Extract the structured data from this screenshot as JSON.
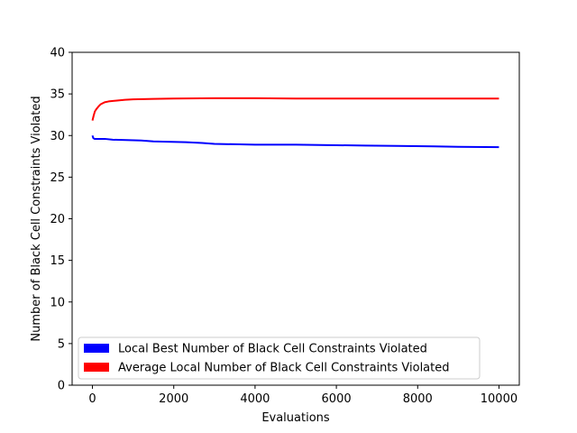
{
  "chart_data": {
    "type": "line",
    "title": "",
    "xlabel": "Evaluations",
    "ylabel": "Number of Black Cell Constraints Violated",
    "xlim": [
      -500,
      10500
    ],
    "ylim": [
      0,
      40
    ],
    "x_ticks": [
      0,
      2000,
      4000,
      6000,
      8000,
      10000
    ],
    "y_ticks": [
      0,
      5,
      10,
      15,
      20,
      25,
      30,
      35,
      40
    ],
    "grid": false,
    "legend_position": "lower-left",
    "series": [
      {
        "name": "Local Best Number of Black Cell Constraints Violated",
        "color": "#0000ff",
        "x": [
          0,
          20,
          50,
          300,
          500,
          1200,
          1500,
          2300,
          2700,
          3000,
          4000,
          5000,
          5800,
          6700,
          7500,
          8400,
          9000,
          10000
        ],
        "y": [
          30.0,
          29.7,
          29.6,
          29.6,
          29.5,
          29.4,
          29.3,
          29.2,
          29.1,
          29.0,
          28.9,
          28.9,
          28.85,
          28.8,
          28.75,
          28.7,
          28.65,
          28.6
        ]
      },
      {
        "name": "Average Local Number of Black Cell Constraints Violated",
        "color": "#ff0000",
        "x": [
          0,
          30,
          60,
          100,
          150,
          200,
          300,
          400,
          600,
          800,
          1000,
          1500,
          2000,
          3000,
          4000,
          5000,
          7000,
          10000
        ],
        "y": [
          31.8,
          32.4,
          32.9,
          33.2,
          33.5,
          33.75,
          34.0,
          34.1,
          34.2,
          34.3,
          34.35,
          34.4,
          34.45,
          34.48,
          34.48,
          34.45,
          34.45,
          34.45
        ]
      }
    ]
  }
}
